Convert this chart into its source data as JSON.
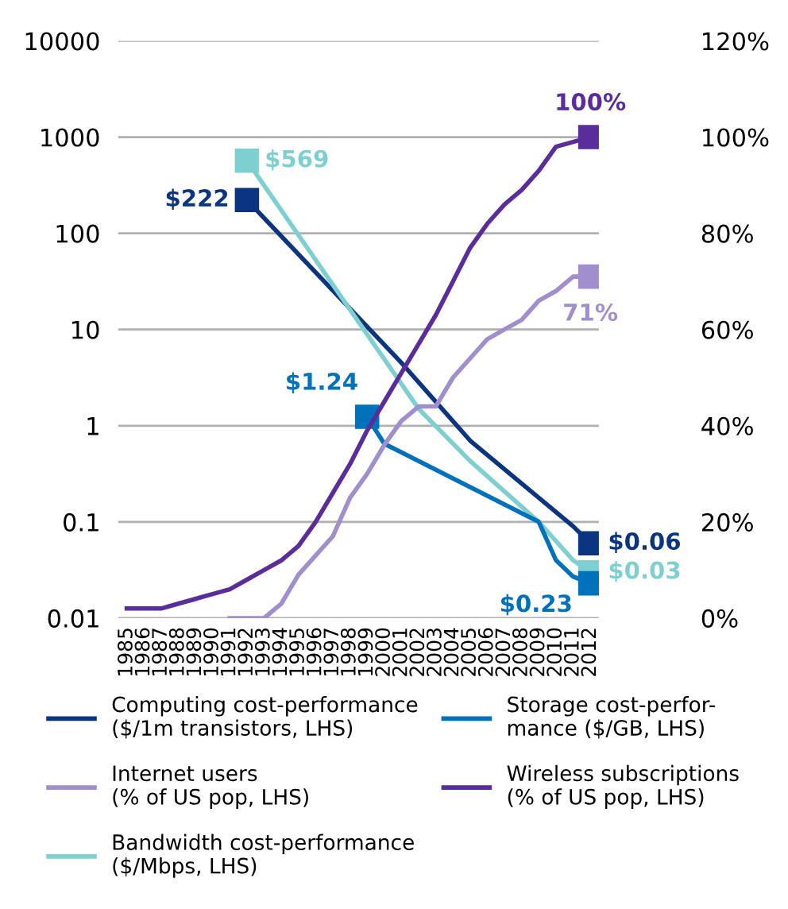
{
  "chart_data": {
    "type": "line",
    "categories": [
      "1985",
      "1986",
      "1987",
      "1988",
      "1989",
      "1990",
      "1991",
      "1992",
      "1993",
      "1994",
      "1995",
      "1996",
      "1997",
      "1998",
      "1999",
      "2000",
      "2001",
      "2002",
      "2003",
      "2004",
      "2005",
      "2006",
      "2007",
      "2008",
      "2009",
      "2010",
      "2011",
      "2012"
    ],
    "series": [
      {
        "name": "Computing cost-performance\n($/1m transistors, LHS)",
        "color": "#0b3580",
        "values": [
          null,
          null,
          null,
          null,
          null,
          null,
          null,
          222,
          null,
          null,
          null,
          null,
          null,
          null,
          null,
          null,
          4.5,
          null,
          null,
          null,
          0.7,
          null,
          null,
          null,
          null,
          null,
          0.09,
          0.06
        ],
        "value_labels": [
          null,
          null,
          null,
          null,
          null,
          null,
          null,
          "$222",
          null,
          null,
          null,
          null,
          null,
          null,
          null,
          null,
          null,
          null,
          null,
          null,
          null,
          null,
          null,
          null,
          null,
          null,
          null,
          "$0.06"
        ]
      },
      {
        "name": "Internet users\n(% of US pop, LHS)",
        "color": "#a08fcc",
        "axis": "y2",
        "values": [
          null,
          null,
          null,
          null,
          null,
          null,
          0,
          0,
          0,
          3,
          9,
          13,
          17,
          25,
          30,
          36,
          41,
          44,
          44,
          50,
          54,
          58,
          60,
          62,
          66,
          68,
          71,
          71
        ],
        "value_labels": [
          null,
          null,
          null,
          null,
          null,
          null,
          null,
          null,
          null,
          null,
          null,
          null,
          null,
          null,
          null,
          null,
          null,
          null,
          null,
          null,
          null,
          null,
          null,
          null,
          null,
          null,
          null,
          "71%"
        ]
      },
      {
        "name": "Bandwidth cost-performance\n($/Mbps, LHS)",
        "color": "#7dcfd0",
        "values": [
          null,
          null,
          null,
          null,
          null,
          null,
          null,
          569,
          null,
          null,
          null,
          null,
          null,
          null,
          null,
          null,
          null,
          1.5,
          null,
          null,
          0.43,
          null,
          null,
          null,
          0.1,
          null,
          0.04,
          0.03
        ],
        "value_labels": [
          null,
          null,
          null,
          null,
          null,
          null,
          null,
          "$569",
          null,
          null,
          null,
          null,
          null,
          null,
          null,
          null,
          null,
          null,
          null,
          null,
          null,
          null,
          null,
          null,
          null,
          null,
          null,
          "$0.03"
        ]
      },
      {
        "name": "Storage cost-perfor-\nmance ($/GB, LHS)",
        "color": "#0072bc",
        "values": [
          null,
          null,
          null,
          null,
          null,
          null,
          null,
          null,
          null,
          null,
          null,
          null,
          null,
          null,
          1.24,
          0.65,
          null,
          null,
          null,
          null,
          null,
          null,
          null,
          null,
          0.1,
          0.04,
          0.027,
          0.023
        ],
        "value_labels": [
          null,
          null,
          null,
          null,
          null,
          null,
          null,
          null,
          null,
          null,
          null,
          null,
          null,
          null,
          "$1.24",
          null,
          null,
          null,
          null,
          null,
          null,
          null,
          null,
          null,
          null,
          null,
          null,
          null
        ]
      },
      {
        "name": "Wireless subscriptions\n(% of US pop, LHS)",
        "color": "#5b2d9a",
        "axis": "y2",
        "values": [
          2,
          2,
          2,
          3,
          4,
          5,
          6,
          8,
          10,
          12,
          15,
          20,
          26,
          32,
          39,
          45,
          51,
          57,
          63,
          70,
          77,
          82,
          86,
          89,
          93,
          98,
          99,
          100
        ],
        "value_labels": [
          null,
          null,
          null,
          null,
          null,
          null,
          null,
          null,
          null,
          null,
          null,
          null,
          null,
          null,
          null,
          null,
          null,
          null,
          null,
          null,
          null,
          null,
          null,
          null,
          null,
          null,
          null,
          "100%"
        ]
      }
    ],
    "log": "y",
    "ylim": [
      0.01,
      10000
    ],
    "yticks": [
      0.01,
      0.1,
      1,
      10,
      100,
      1000,
      10000
    ],
    "y2lim": [
      0,
      120
    ],
    "y2ticks": [
      {
        "value": 0,
        "label": "0%"
      },
      {
        "value": 20,
        "label": "20%"
      },
      {
        "value": 40,
        "label": "40%"
      },
      {
        "value": 60,
        "label": "60%"
      },
      {
        "value": 80,
        "label": "80%"
      },
      {
        "value": 100,
        "label": "100%"
      },
      {
        "value": 120,
        "label": "120%"
      }
    ],
    "annotations": [
      "$0.23"
    ],
    "grid": "y",
    "legend": "bottom"
  }
}
